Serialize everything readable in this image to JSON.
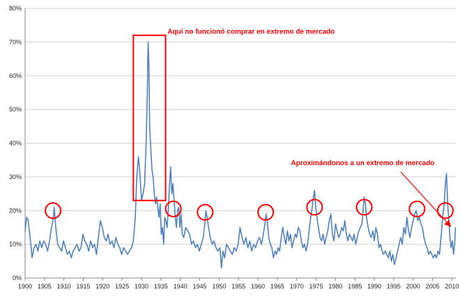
{
  "chart_data": {
    "type": "line",
    "title": "",
    "xlabel": "",
    "ylabel": "",
    "xlim": [
      1900,
      2011
    ],
    "ylim": [
      0,
      80
    ],
    "y_unit": "%",
    "grid": "horizontal",
    "legend": "none",
    "line_color": "#4f81bd",
    "highlight_color": "#ff0000",
    "x_ticks": [
      1900,
      1905,
      1910,
      1915,
      1920,
      1925,
      1930,
      1935,
      1940,
      1945,
      1950,
      1955,
      1960,
      1965,
      1970,
      1975,
      1980,
      1985,
      1990,
      1995,
      2000,
      2005,
      2010
    ],
    "x_tick_labels": [
      "1900",
      "1905",
      "1910",
      "1915",
      "1920",
      "1925",
      "1930",
      "1935",
      "1940",
      "1945",
      "1950",
      "1955",
      "1960",
      "1965",
      "1970",
      "1975",
      "1980",
      "1985",
      "1990",
      "1995",
      "2000",
      "2005",
      "2010"
    ],
    "y_ticks": [
      0,
      10,
      20,
      30,
      40,
      50,
      60,
      70,
      80
    ],
    "y_tick_labels": [
      "0%",
      "10%",
      "20%",
      "30%",
      "40%",
      "50%",
      "60%",
      "70%",
      "80%"
    ],
    "series": [
      {
        "points": [
          [
            1900.0,
            14
          ],
          [
            1900.4,
            18
          ],
          [
            1900.8,
            17
          ],
          [
            1901.3,
            12
          ],
          [
            1901.8,
            6
          ],
          [
            1902.3,
            9
          ],
          [
            1902.8,
            10
          ],
          [
            1903.3,
            8
          ],
          [
            1903.8,
            11
          ],
          [
            1904.3,
            9
          ],
          [
            1904.8,
            11
          ],
          [
            1905.3,
            10
          ],
          [
            1905.8,
            8
          ],
          [
            1906.3,
            11
          ],
          [
            1906.8,
            15
          ],
          [
            1907.2,
            17
          ],
          [
            1907.5,
            21
          ],
          [
            1907.9,
            15
          ],
          [
            1908.4,
            10
          ],
          [
            1908.9,
            9
          ],
          [
            1909.4,
            8
          ],
          [
            1909.9,
            11
          ],
          [
            1910.4,
            9
          ],
          [
            1910.9,
            7
          ],
          [
            1911.4,
            8
          ],
          [
            1911.9,
            6
          ],
          [
            1912.4,
            8
          ],
          [
            1912.9,
            9
          ],
          [
            1913.4,
            10
          ],
          [
            1913.9,
            8
          ],
          [
            1914.4,
            9
          ],
          [
            1914.9,
            13
          ],
          [
            1915.4,
            11
          ],
          [
            1915.9,
            10
          ],
          [
            1916.4,
            8
          ],
          [
            1916.9,
            11
          ],
          [
            1917.4,
            9
          ],
          [
            1917.9,
            10
          ],
          [
            1918.4,
            7
          ],
          [
            1918.9,
            12
          ],
          [
            1919.4,
            17
          ],
          [
            1919.9,
            15
          ],
          [
            1920.4,
            12
          ],
          [
            1920.9,
            11
          ],
          [
            1921.4,
            13
          ],
          [
            1921.9,
            10
          ],
          [
            1922.4,
            11
          ],
          [
            1922.9,
            9
          ],
          [
            1923.4,
            12
          ],
          [
            1923.9,
            10
          ],
          [
            1924.4,
            9
          ],
          [
            1924.9,
            7
          ],
          [
            1925.4,
            9
          ],
          [
            1925.9,
            8
          ],
          [
            1926.4,
            7
          ],
          [
            1926.9,
            8
          ],
          [
            1927.4,
            9
          ],
          [
            1927.9,
            11
          ],
          [
            1928.4,
            18
          ],
          [
            1928.8,
            30
          ],
          [
            1929.2,
            36
          ],
          [
            1929.6,
            31
          ],
          [
            1930.0,
            23
          ],
          [
            1930.4,
            25
          ],
          [
            1930.8,
            28
          ],
          [
            1931.2,
            40
          ],
          [
            1931.5,
            55
          ],
          [
            1931.7,
            70
          ],
          [
            1931.9,
            64
          ],
          [
            1932.1,
            45
          ],
          [
            1932.4,
            38
          ],
          [
            1932.7,
            32
          ],
          [
            1933.0,
            30
          ],
          [
            1933.3,
            25
          ],
          [
            1933.6,
            22
          ],
          [
            1933.9,
            24
          ],
          [
            1934.2,
            21
          ],
          [
            1934.5,
            18
          ],
          [
            1934.8,
            22
          ],
          [
            1935.1,
            13
          ],
          [
            1935.4,
            15
          ],
          [
            1935.7,
            10
          ],
          [
            1936.0,
            18
          ],
          [
            1936.3,
            17
          ],
          [
            1936.6,
            15
          ],
          [
            1936.9,
            20
          ],
          [
            1937.2,
            27
          ],
          [
            1937.5,
            33
          ],
          [
            1937.8,
            25
          ],
          [
            1938.1,
            28
          ],
          [
            1938.4,
            23
          ],
          [
            1938.7,
            18
          ],
          [
            1939.0,
            15
          ],
          [
            1939.3,
            20
          ],
          [
            1939.6,
            21
          ],
          [
            1939.9,
            15
          ],
          [
            1940.2,
            19
          ],
          [
            1940.5,
            13
          ],
          [
            1940.9,
            12
          ],
          [
            1941.4,
            15
          ],
          [
            1941.9,
            14
          ],
          [
            1942.4,
            13
          ],
          [
            1942.9,
            10
          ],
          [
            1943.4,
            11
          ],
          [
            1943.9,
            9
          ],
          [
            1944.4,
            10
          ],
          [
            1944.9,
            8
          ],
          [
            1945.4,
            10
          ],
          [
            1945.9,
            12
          ],
          [
            1946.3,
            16
          ],
          [
            1946.6,
            20
          ],
          [
            1946.9,
            18
          ],
          [
            1947.3,
            15
          ],
          [
            1947.7,
            12
          ],
          [
            1948.2,
            10
          ],
          [
            1948.7,
            11
          ],
          [
            1949.2,
            9
          ],
          [
            1949.7,
            8
          ],
          [
            1950.2,
            9
          ],
          [
            1950.6,
            3
          ],
          [
            1951.0,
            8
          ],
          [
            1951.4,
            6
          ],
          [
            1951.9,
            10
          ],
          [
            1952.4,
            9
          ],
          [
            1952.9,
            8
          ],
          [
            1953.4,
            7
          ],
          [
            1953.9,
            9
          ],
          [
            1954.4,
            8
          ],
          [
            1954.9,
            10
          ],
          [
            1955.4,
            15
          ],
          [
            1955.9,
            12
          ],
          [
            1956.4,
            10
          ],
          [
            1956.9,
            12
          ],
          [
            1957.4,
            9
          ],
          [
            1957.9,
            11
          ],
          [
            1958.4,
            8
          ],
          [
            1958.9,
            10
          ],
          [
            1959.4,
            9
          ],
          [
            1959.9,
            11
          ],
          [
            1960.4,
            12
          ],
          [
            1960.9,
            10
          ],
          [
            1961.4,
            13
          ],
          [
            1961.8,
            16
          ],
          [
            1962.1,
            19
          ],
          [
            1962.4,
            17
          ],
          [
            1962.8,
            12
          ],
          [
            1963.2,
            10
          ],
          [
            1963.6,
            9
          ],
          [
            1964.0,
            6
          ],
          [
            1964.4,
            8
          ],
          [
            1964.8,
            7
          ],
          [
            1965.2,
            9
          ],
          [
            1965.6,
            8
          ],
          [
            1966.0,
            12
          ],
          [
            1966.4,
            15
          ],
          [
            1966.8,
            12
          ],
          [
            1967.2,
            10
          ],
          [
            1967.6,
            14
          ],
          [
            1968.0,
            11
          ],
          [
            1968.4,
            13
          ],
          [
            1968.8,
            9
          ],
          [
            1969.2,
            11
          ],
          [
            1969.6,
            13
          ],
          [
            1970.0,
            12
          ],
          [
            1970.4,
            15
          ],
          [
            1970.8,
            14
          ],
          [
            1971.2,
            11
          ],
          [
            1971.6,
            9
          ],
          [
            1972.0,
            10
          ],
          [
            1972.4,
            8
          ],
          [
            1972.8,
            10
          ],
          [
            1973.2,
            14
          ],
          [
            1973.6,
            18
          ],
          [
            1974.0,
            21
          ],
          [
            1974.3,
            24
          ],
          [
            1974.6,
            26
          ],
          [
            1974.9,
            21
          ],
          [
            1975.2,
            18
          ],
          [
            1975.6,
            15
          ],
          [
            1976.0,
            12
          ],
          [
            1976.4,
            11
          ],
          [
            1976.8,
            13
          ],
          [
            1977.2,
            10
          ],
          [
            1977.6,
            12
          ],
          [
            1978.0,
            14
          ],
          [
            1978.4,
            17
          ],
          [
            1978.8,
            19
          ],
          [
            1979.2,
            13
          ],
          [
            1979.6,
            11
          ],
          [
            1980.0,
            16
          ],
          [
            1980.4,
            14
          ],
          [
            1980.8,
            12
          ],
          [
            1981.2,
            13
          ],
          [
            1981.6,
            15
          ],
          [
            1982.0,
            14
          ],
          [
            1982.4,
            17
          ],
          [
            1982.8,
            13
          ],
          [
            1983.2,
            11
          ],
          [
            1983.6,
            13
          ],
          [
            1984.0,
            12
          ],
          [
            1984.4,
            11
          ],
          [
            1984.8,
            13
          ],
          [
            1985.2,
            10
          ],
          [
            1985.6,
            12
          ],
          [
            1986.0,
            14
          ],
          [
            1986.4,
            15
          ],
          [
            1986.8,
            16
          ],
          [
            1987.1,
            20
          ],
          [
            1987.4,
            24
          ],
          [
            1987.7,
            22
          ],
          [
            1988.0,
            18
          ],
          [
            1988.4,
            15
          ],
          [
            1988.8,
            13
          ],
          [
            1989.2,
            12
          ],
          [
            1989.6,
            14
          ],
          [
            1990.0,
            11
          ],
          [
            1990.4,
            15
          ],
          [
            1990.8,
            13
          ],
          [
            1991.2,
            9
          ],
          [
            1991.6,
            10
          ],
          [
            1992.0,
            8
          ],
          [
            1992.4,
            7
          ],
          [
            1992.8,
            8
          ],
          [
            1993.2,
            7
          ],
          [
            1993.6,
            6
          ],
          [
            1994.0,
            8
          ],
          [
            1994.4,
            5
          ],
          [
            1994.8,
            7
          ],
          [
            1995.2,
            4
          ],
          [
            1995.6,
            6
          ],
          [
            1996.0,
            8
          ],
          [
            1996.4,
            10
          ],
          [
            1996.8,
            12
          ],
          [
            1997.2,
            10
          ],
          [
            1997.6,
            15
          ],
          [
            1998.0,
            13
          ],
          [
            1998.4,
            18
          ],
          [
            1998.8,
            14
          ],
          [
            1999.2,
            12
          ],
          [
            1999.6,
            15
          ],
          [
            2000.0,
            17
          ],
          [
            2000.4,
            19
          ],
          [
            2000.8,
            20
          ],
          [
            2001.2,
            17
          ],
          [
            2001.6,
            18
          ],
          [
            2002.0,
            16
          ],
          [
            2002.4,
            15
          ],
          [
            2002.8,
            12
          ],
          [
            2003.2,
            10
          ],
          [
            2003.6,
            9
          ],
          [
            2004.0,
            7
          ],
          [
            2004.4,
            8
          ],
          [
            2004.8,
            7
          ],
          [
            2005.2,
            6
          ],
          [
            2005.6,
            7
          ],
          [
            2006.0,
            6
          ],
          [
            2006.4,
            8
          ],
          [
            2006.8,
            7
          ],
          [
            2007.2,
            12
          ],
          [
            2007.6,
            18
          ],
          [
            2008.0,
            22
          ],
          [
            2008.3,
            28
          ],
          [
            2008.6,
            31
          ],
          [
            2008.9,
            22
          ],
          [
            2009.2,
            17
          ],
          [
            2009.5,
            12
          ],
          [
            2009.8,
            9
          ],
          [
            2010.1,
            11
          ],
          [
            2010.4,
            7
          ],
          [
            2010.7,
            10
          ],
          [
            2010.9,
            15
          ]
        ]
      }
    ],
    "highlight_circles": [
      {
        "x": 1907.2,
        "y": 20
      },
      {
        "x": 1938.2,
        "y": 20.5
      },
      {
        "x": 1946.4,
        "y": 19.5
      },
      {
        "x": 1962.0,
        "y": 19.5
      },
      {
        "x": 1974.6,
        "y": 21
      },
      {
        "x": 1987.4,
        "y": 21
      },
      {
        "x": 2001.0,
        "y": 20.5
      },
      {
        "x": 2008.3,
        "y": 20
      }
    ],
    "highlight_rect": {
      "x0": 1927.9,
      "x1": 1936.2,
      "y0": 23,
      "y1": 72
    },
    "annotations": [
      {
        "text": "Aquí no funcionó comprar en extremo de mercado",
        "x": 1936.7,
        "y": 72.5
      },
      {
        "text": "Aproximándonos a un extremo de mercado",
        "x": 1968.5,
        "y": 33.5
      }
    ],
    "arrow": {
      "from": [
        1996.8,
        31.5
      ],
      "to": [
        2009.5,
        15.5
      ]
    }
  }
}
